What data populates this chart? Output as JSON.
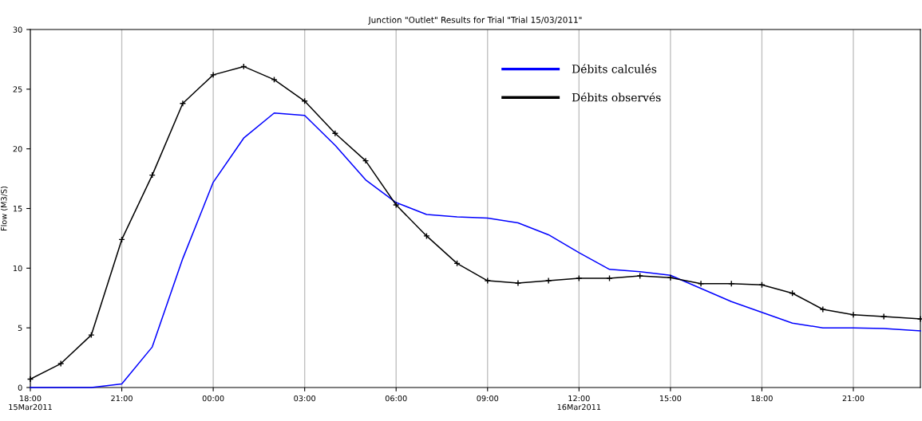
{
  "chart_data": {
    "type": "line",
    "title": "Junction \"Outlet\" Results for Trial \"Trial 15/03/2011\"",
    "ylabel": "Flow (M3/S)",
    "xlim": [
      "2011-03-15T18:00",
      "2011-03-16T23:12"
    ],
    "ylim": [
      0,
      30
    ],
    "xticks": [
      {
        "value": "2011-03-15T18:00",
        "label": "18:00\n15Mar2011"
      },
      {
        "value": "2011-03-15T21:00",
        "label": "21:00"
      },
      {
        "value": "2011-03-16T00:00",
        "label": "00:00"
      },
      {
        "value": "2011-03-16T03:00",
        "label": "03:00"
      },
      {
        "value": "2011-03-16T06:00",
        "label": "06:00"
      },
      {
        "value": "2011-03-16T09:00",
        "label": "09:00"
      },
      {
        "value": "2011-03-16T12:00",
        "label": "12:00\n16Mar2011"
      },
      {
        "value": "2011-03-16T15:00",
        "label": "15:00"
      },
      {
        "value": "2011-03-16T18:00",
        "label": "18:00"
      },
      {
        "value": "2011-03-16T21:00",
        "label": "21:00"
      }
    ],
    "yticks": [
      0,
      5,
      10,
      15,
      20,
      25,
      30
    ],
    "grid": "x",
    "legend": "top right",
    "series": [
      {
        "name": "Débits calculés",
        "color": "#0000ff",
        "marker": "none",
        "x": [
          "2011-03-15T18:00",
          "2011-03-15T20:00",
          "2011-03-15T21:00",
          "2011-03-15T22:00",
          "2011-03-15T23:00",
          "2011-03-16T00:00",
          "2011-03-16T01:00",
          "2011-03-16T02:00",
          "2011-03-16T03:00",
          "2011-03-16T04:00",
          "2011-03-16T05:00",
          "2011-03-16T06:00",
          "2011-03-16T07:00",
          "2011-03-16T08:00",
          "2011-03-16T09:00",
          "2011-03-16T10:00",
          "2011-03-16T11:00",
          "2011-03-16T12:00",
          "2011-03-16T13:00",
          "2011-03-16T14:00",
          "2011-03-16T15:00",
          "2011-03-16T16:00",
          "2011-03-16T17:00",
          "2011-03-16T18:00",
          "2011-03-16T19:00",
          "2011-03-16T20:00",
          "2011-03-16T21:00",
          "2011-03-16T22:00",
          "2011-03-16T23:12"
        ],
        "values": [
          0,
          0,
          0.3,
          3.4,
          10.8,
          17.2,
          20.9,
          23.0,
          22.8,
          20.3,
          17.4,
          15.5,
          14.5,
          14.3,
          14.2,
          13.8,
          12.8,
          11.3,
          9.9,
          9.7,
          9.4,
          8.3,
          7.2,
          6.3,
          5.4,
          5.0,
          5.0,
          4.95,
          4.75
        ]
      },
      {
        "name": "Débits observés",
        "color": "#000000",
        "marker": "cross",
        "x": [
          "2011-03-15T18:00",
          "2011-03-15T19:00",
          "2011-03-15T20:00",
          "2011-03-15T21:00",
          "2011-03-15T22:00",
          "2011-03-15T23:00",
          "2011-03-16T00:00",
          "2011-03-16T01:00",
          "2011-03-16T02:00",
          "2011-03-16T03:00",
          "2011-03-16T04:00",
          "2011-03-16T05:00",
          "2011-03-16T06:00",
          "2011-03-16T07:00",
          "2011-03-16T08:00",
          "2011-03-16T09:00",
          "2011-03-16T10:00",
          "2011-03-16T11:00",
          "2011-03-16T12:00",
          "2011-03-16T13:00",
          "2011-03-16T14:00",
          "2011-03-16T15:00",
          "2011-03-16T16:00",
          "2011-03-16T17:00",
          "2011-03-16T18:00",
          "2011-03-16T19:00",
          "2011-03-16T20:00",
          "2011-03-16T21:00",
          "2011-03-16T22:00",
          "2011-03-16T23:12"
        ],
        "values": [
          0.7,
          2.0,
          4.4,
          12.4,
          17.8,
          23.8,
          26.2,
          26.9,
          25.8,
          24.0,
          21.3,
          19.0,
          15.3,
          12.7,
          10.4,
          8.95,
          8.75,
          8.95,
          9.15,
          9.15,
          9.35,
          9.2,
          8.7,
          8.7,
          8.6,
          7.9,
          6.55,
          6.1,
          5.95,
          5.75
        ]
      }
    ]
  }
}
